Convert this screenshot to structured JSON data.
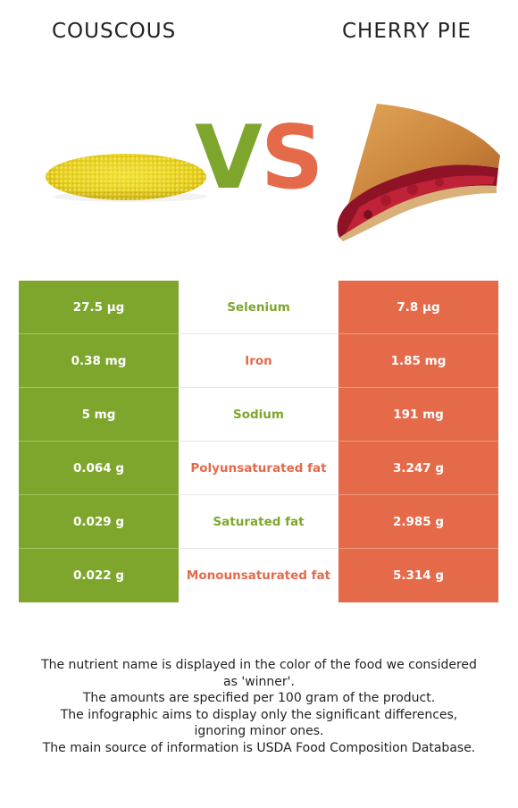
{
  "titles": {
    "left": "COUSCOUS",
    "right": "CHERRY PIE"
  },
  "vs": {
    "v": "V",
    "s": "S"
  },
  "colors": {
    "left_winner": "#7ea62d",
    "right_winner": "#e46a4a"
  },
  "rows": [
    {
      "left": "27.5 µg",
      "nutrient": "Selenium",
      "right": "7.8 µg",
      "winner": "left"
    },
    {
      "left": "0.38 mg",
      "nutrient": "Iron",
      "right": "1.85 mg",
      "winner": "right"
    },
    {
      "left": "5 mg",
      "nutrient": "Sodium",
      "right": "191 mg",
      "winner": "left"
    },
    {
      "left": "0.064 g",
      "nutrient": "Polyunsaturated fat",
      "right": "3.247 g",
      "winner": "right"
    },
    {
      "left": "0.029 g",
      "nutrient": "Saturated fat",
      "right": "2.985 g",
      "winner": "left"
    },
    {
      "left": "0.022 g",
      "nutrient": "Monounsaturated fat",
      "right": "5.314 g",
      "winner": "right"
    }
  ],
  "footer": [
    "The nutrient name is displayed in the color of the food we considered as 'winner'.",
    "The amounts are specified per 100 gram of the product.",
    "The infographic aims to display only the significant differences, ignoring minor ones.",
    "The main source of information is USDA Food Composition Database."
  ]
}
